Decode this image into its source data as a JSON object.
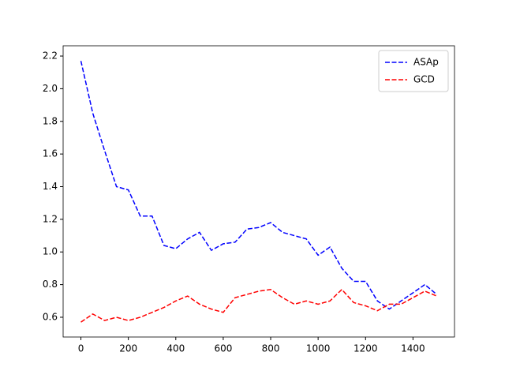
{
  "chart_data": {
    "type": "line",
    "x": [
      0,
      50,
      100,
      150,
      200,
      250,
      300,
      350,
      400,
      450,
      500,
      550,
      600,
      650,
      700,
      750,
      800,
      850,
      900,
      950,
      1000,
      1050,
      1100,
      1150,
      1200,
      1250,
      1300,
      1350,
      1400,
      1450,
      1500
    ],
    "series": [
      {
        "name": "ASAp",
        "color": "#0000ff",
        "values": [
          2.17,
          1.85,
          1.62,
          1.4,
          1.38,
          1.22,
          1.22,
          1.04,
          1.02,
          1.08,
          1.12,
          1.01,
          1.05,
          1.06,
          1.14,
          1.15,
          1.18,
          1.12,
          1.1,
          1.08,
          0.98,
          1.03,
          0.9,
          0.82,
          0.82,
          0.7,
          0.65,
          0.7,
          0.75,
          0.8,
          0.74
        ]
      },
      {
        "name": "GCD",
        "color": "#ff0000",
        "values": [
          0.57,
          0.62,
          0.58,
          0.6,
          0.58,
          0.6,
          0.63,
          0.66,
          0.7,
          0.73,
          0.68,
          0.65,
          0.63,
          0.72,
          0.74,
          0.76,
          0.77,
          0.72,
          0.68,
          0.7,
          0.68,
          0.7,
          0.77,
          0.69,
          0.67,
          0.64,
          0.68,
          0.68,
          0.72,
          0.76,
          0.73
        ]
      }
    ],
    "xlim": [
      -75,
      1575
    ],
    "xticks": [
      0,
      200,
      400,
      600,
      800,
      1000,
      1200,
      1400
    ],
    "ylim": [
      0.479,
      2.263
    ],
    "yticks": [
      0.6,
      0.8,
      {
        "value": 1,
        "label": "1.0"
      },
      1.2,
      1.4,
      1.6,
      1.8,
      {
        "value": 2,
        "label": "2.0"
      },
      2.2
    ],
    "line_style": "dashed",
    "legend": "upper right"
  }
}
